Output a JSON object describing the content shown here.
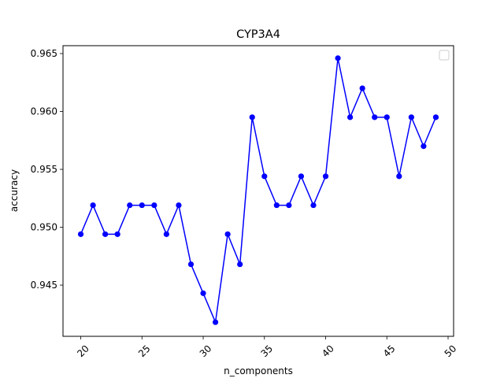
{
  "chart_data": {
    "type": "line",
    "title": "CYP3A4",
    "xlabel": "n_components",
    "ylabel": "accuracy",
    "xlim": [
      18.55,
      50.45
    ],
    "ylim": [
      0.94058,
      0.96568
    ],
    "xticks": [
      20,
      25,
      30,
      35,
      40,
      45,
      50
    ],
    "yticks": [
      0.945,
      0.95,
      0.955,
      0.96,
      0.965
    ],
    "xtick_labels": [
      "20",
      "25",
      "30",
      "35",
      "40",
      "45",
      "50"
    ],
    "ytick_labels": [
      "0.945",
      "0.950",
      "0.955",
      "0.960",
      "0.965"
    ],
    "xtick_rotation": 45,
    "grid": false,
    "legend": {
      "placement": "upper right",
      "entries": []
    },
    "series": [
      {
        "color": "#0000ff",
        "marker": "circle",
        "x": [
          20,
          21,
          22,
          23,
          24,
          25,
          26,
          27,
          28,
          29,
          30,
          31,
          32,
          33,
          34,
          35,
          36,
          37,
          38,
          39,
          40,
          41,
          42,
          43,
          44,
          45,
          46,
          47,
          48,
          49
        ],
        "y": [
          0.9494,
          0.9519,
          0.9494,
          0.9494,
          0.9519,
          0.9519,
          0.9519,
          0.9494,
          0.9519,
          0.9468,
          0.9443,
          0.9418,
          0.9494,
          0.9468,
          0.9595,
          0.9544,
          0.9519,
          0.9519,
          0.9544,
          0.9519,
          0.9544,
          0.9646,
          0.9595,
          0.962,
          0.9595,
          0.9595,
          0.9544,
          0.9595,
          0.957,
          0.9595
        ]
      }
    ]
  }
}
